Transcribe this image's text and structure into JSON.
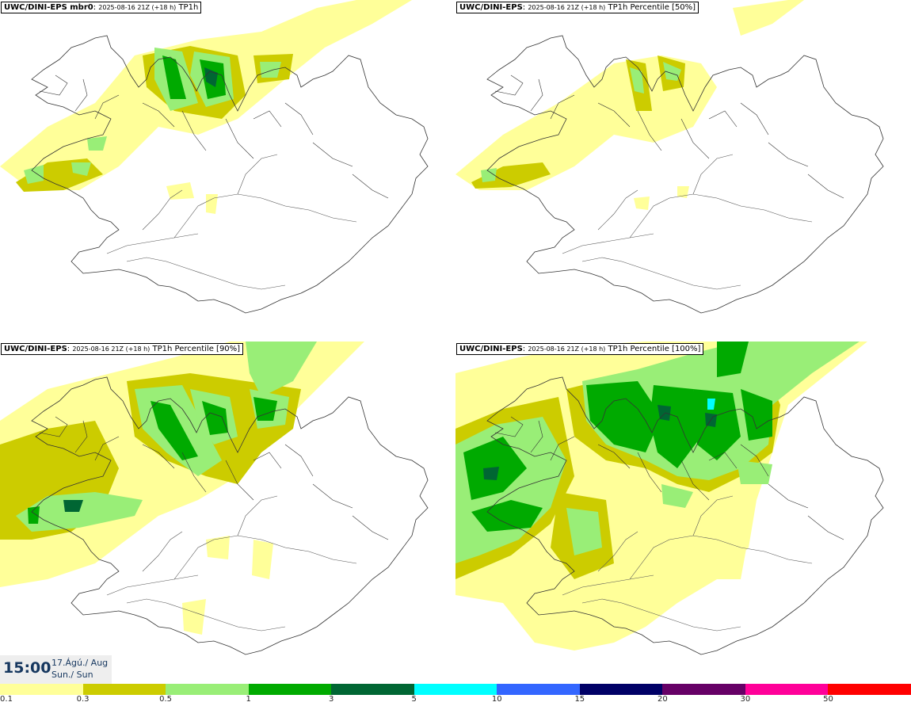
{
  "panels": [
    {
      "model": "UWC/DINI-EPS",
      "member": " mbr0",
      "timestamp": "2025-08-16 21Z (+18 h)",
      "variable": "TP1h",
      "percentile": ""
    },
    {
      "model": "UWC/DINI-EPS",
      "member": "",
      "timestamp": "2025-08-16 21Z (+18 h)",
      "variable": "TP1h Percentile",
      "percentile": " [50%]"
    },
    {
      "model": "UWC/DINI-EPS",
      "member": "",
      "timestamp": "2025-08-16 21Z (+18 h)",
      "variable": "TP1h Percentile",
      "percentile": " [90%]"
    },
    {
      "model": "UWC/DINI-EPS",
      "member": "",
      "timestamp": "2025-08-16 21Z (+18 h)",
      "variable": "TP1h Percentile",
      "percentile": " [100%]"
    }
  ],
  "valid_time": {
    "hour": "15:00",
    "date": "17.Ágú./ Aug",
    "day": "Sun./ Sun"
  },
  "legend": {
    "colors": [
      "#ffff99",
      "#cccc00",
      "#99ee77",
      "#00aa00",
      "#006633",
      "#00ffff",
      "#3366ff",
      "#000066",
      "#660066",
      "#ff0099",
      "#ff0000"
    ],
    "ticks": [
      "0.1",
      "0.3",
      "0.5",
      "1",
      "3",
      "5",
      "10",
      "15",
      "20",
      "30",
      "50"
    ]
  }
}
